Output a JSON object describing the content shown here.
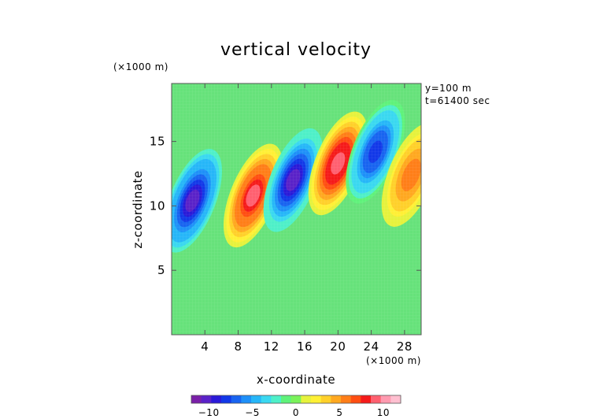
{
  "chart_data": {
    "type": "heatmap",
    "title": "vertical velocity",
    "xlabel": "x-coordinate",
    "ylabel": "z-coordinate",
    "x_unit": "(×1000 m)",
    "y_unit": "(×1000 m)",
    "annotations": [
      "y=100 m",
      "t=61400 sec"
    ],
    "xlim": [
      0,
      30
    ],
    "ylim": [
      0,
      19.5
    ],
    "x_ticks": [
      4,
      8,
      12,
      16,
      20,
      24,
      28
    ],
    "y_ticks": [
      5,
      10,
      15
    ],
    "colorbar": {
      "range": [
        -12,
        12
      ],
      "tick_values": [
        -10,
        -5,
        0,
        5,
        10
      ],
      "tick_labels": [
        "−10",
        "−5",
        "0",
        "5",
        "10"
      ],
      "colors": [
        "#7a1fa8",
        "#5a22c8",
        "#2a1ad8",
        "#1238e8",
        "#1864f0",
        "#1e90f8",
        "#26b6f8",
        "#3ad8f0",
        "#4ef0c8",
        "#5ff27a",
        "#7af25a",
        "#e6f23c",
        "#fff035",
        "#ffd02a",
        "#ffa820",
        "#ff7e18",
        "#ff4e12",
        "#f51a1a",
        "#ff6070",
        "#ff9ab0",
        "#ffbfd0"
      ]
    },
    "series": [
      {
        "sign": "negative",
        "x": 2.5,
        "z": 10.4,
        "peak": -10.5
      },
      {
        "sign": "positive",
        "x": 9.8,
        "z": 10.8,
        "peak": 9.0
      },
      {
        "sign": "negative",
        "x": 14.6,
        "z": 12.0,
        "peak": -10.0
      },
      {
        "sign": "positive",
        "x": 20.0,
        "z": 13.3,
        "peak": 9.5
      },
      {
        "sign": "negative",
        "x": 24.5,
        "z": 14.2,
        "peak": -8.0
      },
      {
        "sign": "positive",
        "x": 28.8,
        "z": 12.4,
        "peak": 6.0
      }
    ]
  }
}
